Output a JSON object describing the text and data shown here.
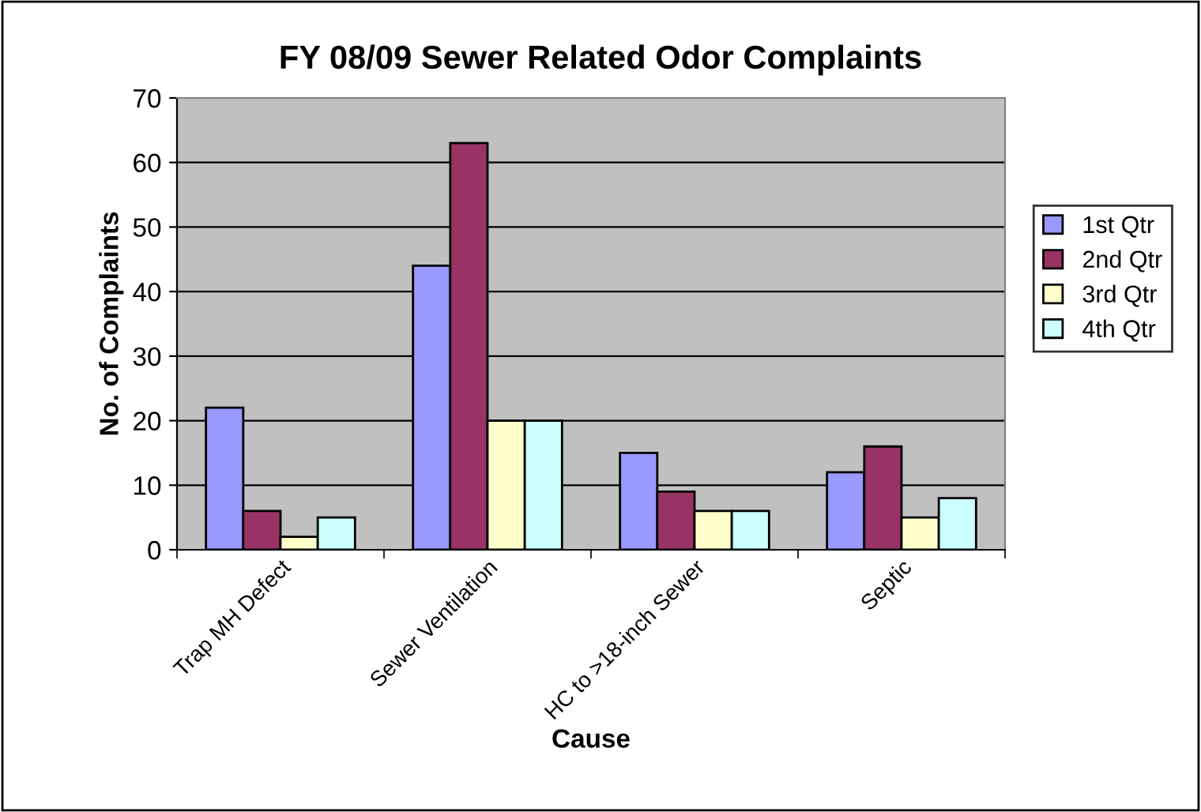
{
  "chart_data": {
    "type": "bar",
    "title": "FY 08/09 Sewer Related Odor Complaints",
    "xlabel": "Cause",
    "ylabel": "No. of Complaints",
    "categories": [
      "Trap MH Defect",
      "Sewer Ventilation",
      "HC to >18-inch Sewer",
      "Septic"
    ],
    "series": [
      {
        "name": "1st Qtr",
        "color": "#9999ff",
        "values": [
          22,
          44,
          15,
          12
        ]
      },
      {
        "name": "2nd Qtr",
        "color": "#993366",
        "values": [
          6,
          63,
          9,
          16
        ]
      },
      {
        "name": "3rd Qtr",
        "color": "#ffffcc",
        "values": [
          2,
          20,
          6,
          5
        ]
      },
      {
        "name": "4th Qtr",
        "color": "#ccffff",
        "values": [
          5,
          20,
          6,
          8
        ]
      }
    ],
    "ylim": [
      0,
      70
    ],
    "yticks": [
      0,
      10,
      20,
      30,
      40,
      50,
      60,
      70
    ],
    "grid": "y",
    "legend": "right"
  }
}
